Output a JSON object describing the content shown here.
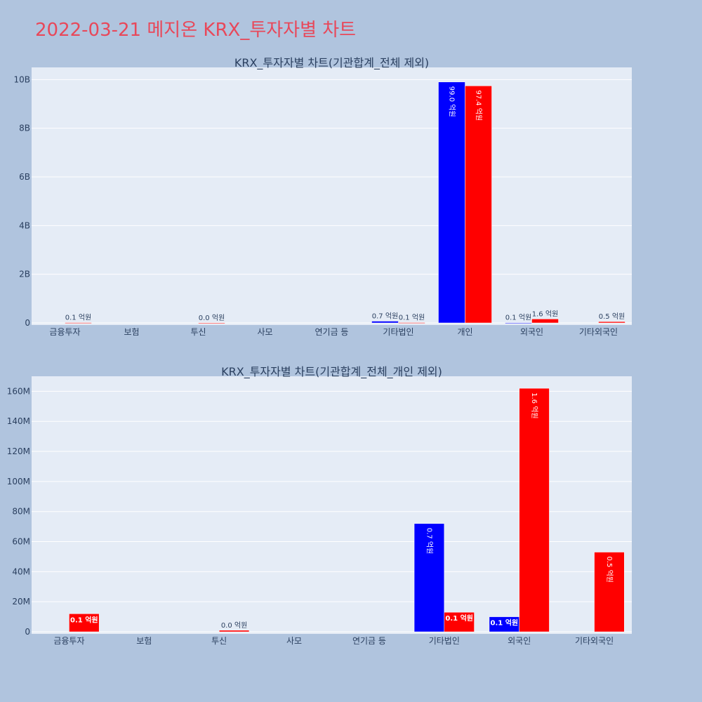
{
  "page": {
    "title": "2022-03-21 메지온 KRX_투자자별 차트"
  },
  "colors": {
    "background": "#b0c4de",
    "plot_bg": "#e5ecf6",
    "buy": "#0000ff",
    "sell": "#ff0000",
    "title": "#e8485a"
  },
  "chart_data": [
    {
      "type": "bar",
      "title": "KRX_투자자별 차트(기관합계_전체 제외)",
      "categories": [
        "금융투자",
        "보험",
        "투신",
        "사모",
        "연기금 등",
        "기타법인",
        "개인",
        "외국인",
        "기타외국인"
      ],
      "series": [
        {
          "color": "#0000ff",
          "values": [
            0,
            0,
            0,
            0,
            0,
            72000000,
            9900000000,
            10000000,
            0
          ],
          "labels": [
            "",
            "",
            "",
            "",
            "",
            "0.7 억원",
            "99.0 억원",
            "0.1 억원",
            ""
          ]
        },
        {
          "color": "#ff0000",
          "values": [
            12000000,
            0,
            1000000,
            0,
            0,
            13000000,
            9740000000,
            162000000,
            53000000
          ],
          "labels": [
            "0.1 억원",
            "",
            "0.0 억원",
            "",
            "",
            "0.1 억원",
            "97.4 억원",
            "1.6 억원",
            "0.5 억원"
          ]
        }
      ],
      "ylim": [
        0,
        10500000000
      ],
      "yticks": [
        0,
        2000000000,
        4000000000,
        6000000000,
        8000000000,
        10000000000
      ],
      "ytick_labels": [
        "0",
        "2B",
        "4B",
        "6B",
        "8B",
        "10B"
      ],
      "grid": true
    },
    {
      "type": "bar",
      "title": "KRX_투자자별 차트(기관합계_전체_개인 제외)",
      "categories": [
        "금융투자",
        "보험",
        "투신",
        "사모",
        "연기금 등",
        "기타법인",
        "외국인",
        "기타외국인"
      ],
      "series": [
        {
          "color": "#0000ff",
          "values": [
            0,
            0,
            0,
            0,
            0,
            72000000,
            10000000,
            0
          ],
          "labels": [
            "",
            "",
            "",
            "",
            "",
            "0.7 억원",
            "0.1 억원",
            ""
          ]
        },
        {
          "color": "#ff0000",
          "values": [
            12000000,
            0,
            1000000,
            0,
            0,
            13000000,
            162000000,
            53000000
          ],
          "labels": [
            "0.1 억원",
            "",
            "0.0 억원",
            "",
            "",
            "0.1 억원",
            "1.6 억원",
            "0.5 억원"
          ]
        }
      ],
      "ylim": [
        0,
        170000000
      ],
      "yticks": [
        0,
        20000000,
        40000000,
        60000000,
        80000000,
        100000000,
        120000000,
        140000000,
        160000000
      ],
      "ytick_labels": [
        "0",
        "20M",
        "40M",
        "60M",
        "80M",
        "100M",
        "120M",
        "140M",
        "160M"
      ],
      "grid": true
    }
  ]
}
